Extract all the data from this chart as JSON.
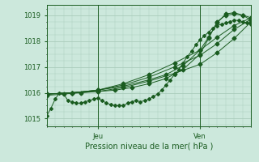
{
  "title": "Pression niveau de la mer( hPa )",
  "ylabel_ticks": [
    1015,
    1016,
    1017,
    1018,
    1019
  ],
  "ylim": [
    1014.7,
    1019.4
  ],
  "xlim": [
    0,
    48
  ],
  "xtick_positions": [
    12,
    36
  ],
  "xtick_labels": [
    "Jeu",
    "Ven"
  ],
  "vline_positions": [
    12,
    36
  ],
  "background_color": "#cce8dc",
  "grid_color": "#aaccbb",
  "line_color": "#1a5c20",
  "series": [
    {
      "x": [
        0,
        1,
        2,
        3,
        4,
        5,
        6,
        7,
        8,
        9,
        10,
        11,
        12,
        13,
        14,
        15,
        16,
        17,
        18,
        19,
        20,
        21,
        22,
        23,
        24,
        25,
        26,
        27,
        28,
        29,
        30,
        31,
        32,
        33,
        34,
        35,
        36,
        37,
        38,
        39,
        40,
        41,
        42,
        43,
        44,
        45,
        46,
        47,
        48
      ],
      "y": [
        1015.1,
        1015.4,
        1015.75,
        1016.0,
        1015.95,
        1015.7,
        1015.65,
        1015.6,
        1015.6,
        1015.65,
        1015.7,
        1015.75,
        1015.8,
        1015.7,
        1015.6,
        1015.55,
        1015.5,
        1015.5,
        1015.5,
        1015.6,
        1015.65,
        1015.7,
        1015.65,
        1015.7,
        1015.75,
        1015.85,
        1015.95,
        1016.1,
        1016.3,
        1016.5,
        1016.7,
        1016.9,
        1017.15,
        1017.4,
        1017.6,
        1017.85,
        1018.05,
        1018.2,
        1018.35,
        1018.5,
        1018.6,
        1018.65,
        1018.7,
        1018.75,
        1018.8,
        1018.8,
        1018.75,
        1018.7,
        1018.65
      ],
      "marker": "D",
      "ms": 2.0
    },
    {
      "x": [
        0,
        6,
        12,
        18,
        24,
        30,
        36,
        40,
        44,
        48
      ],
      "y": [
        1015.95,
        1016.0,
        1016.05,
        1016.2,
        1016.45,
        1016.75,
        1017.1,
        1017.55,
        1018.1,
        1018.75
      ],
      "marker": "D",
      "ms": 2.5
    },
    {
      "x": [
        0,
        6,
        12,
        18,
        24,
        30,
        36,
        40,
        44,
        48
      ],
      "y": [
        1015.95,
        1016.0,
        1016.1,
        1016.3,
        1016.6,
        1017.0,
        1017.45,
        1017.9,
        1018.45,
        1018.85
      ],
      "marker": "D",
      "ms": 2.5
    },
    {
      "x": [
        0,
        6,
        12,
        18,
        24,
        30,
        36,
        40,
        44,
        48
      ],
      "y": [
        1015.95,
        1016.0,
        1016.1,
        1016.35,
        1016.7,
        1017.15,
        1017.65,
        1018.15,
        1018.6,
        1018.9
      ],
      "marker": "D",
      "ms": 2.5
    },
    {
      "x": [
        0,
        4,
        8,
        12,
        16,
        20,
        24,
        28,
        32,
        36,
        38,
        40,
        42,
        44,
        46,
        48
      ],
      "y": [
        1015.9,
        1015.95,
        1016.0,
        1016.05,
        1016.1,
        1016.2,
        1016.35,
        1016.55,
        1016.9,
        1017.5,
        1018.1,
        1018.75,
        1019.0,
        1019.05,
        1019.0,
        1018.9
      ],
      "marker": "D",
      "ms": 2.5
    },
    {
      "x": [
        0,
        6,
        12,
        18,
        24,
        28,
        32,
        36,
        38,
        40,
        42,
        44,
        46,
        48
      ],
      "y": [
        1015.95,
        1016.0,
        1016.1,
        1016.25,
        1016.5,
        1016.7,
        1017.05,
        1017.65,
        1018.15,
        1018.7,
        1019.05,
        1019.1,
        1019.0,
        1018.8
      ],
      "marker": "D",
      "ms": 2.5
    }
  ]
}
